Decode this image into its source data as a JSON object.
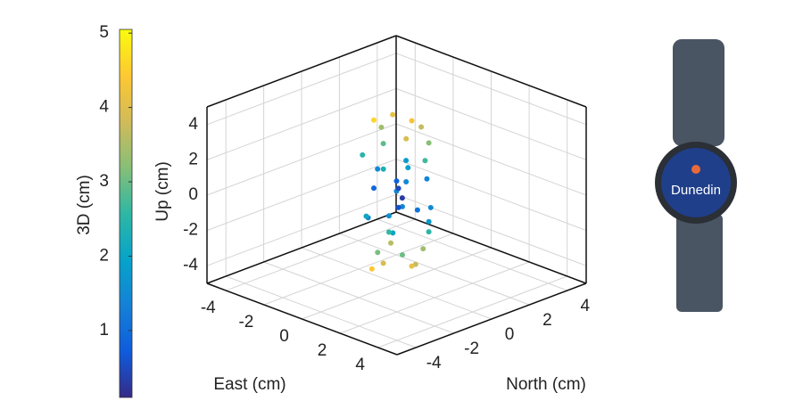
{
  "chart_data": {
    "type": "scatter3d",
    "xlabel": "East (cm)",
    "ylabel": "North (cm)",
    "zlabel": "Up (cm)",
    "xlim": [
      -5,
      5
    ],
    "ylim": [
      -5,
      5
    ],
    "zlim": [
      -5,
      5
    ],
    "xticks": [
      -4,
      -2,
      0,
      2,
      4
    ],
    "yticks": [
      -4,
      -2,
      0,
      2,
      4
    ],
    "zticks": [
      -4,
      -2,
      0,
      2,
      4
    ],
    "grid": true,
    "colorbar": {
      "label": "3D (cm)",
      "clim": [
        0.1,
        5.05
      ],
      "ticks": [
        1,
        2,
        3,
        4,
        5
      ]
    },
    "colormap": [
      "#352a87",
      "#0f5cdd",
      "#1481d6",
      "#06a4ca",
      "#2eb7a4",
      "#87bf77",
      "#d1bb59",
      "#fec832",
      "#f9fb0e"
    ],
    "x": [
      0.5,
      -0.8,
      1.0,
      -0.3,
      0.2,
      -1.2,
      0.9,
      -0.5,
      1.3,
      -1.0,
      0.3,
      -0.2,
      0.8,
      -1.1,
      0.4,
      -0.6,
      1.2,
      0.1,
      -0.9,
      0.6,
      -0.4,
      1.1,
      -1.3,
      0.2,
      0.7,
      -0.7,
      1.0,
      -0.2,
      0.5,
      -1.0,
      0.9,
      -0.4,
      0.3,
      -0.8,
      0.0,
      0.3,
      -0.3,
      0.6,
      -0.6,
      1.4
    ],
    "y": [
      0.3,
      0.6,
      -0.5,
      -0.9,
      1.1,
      0.4,
      0.8,
      -0.2,
      0.2,
      -0.8,
      -1.0,
      0.7,
      -0.3,
      0.1,
      1.2,
      -0.6,
      -0.9,
      0.2,
      0.9,
      0.5,
      -1.1,
      0.6,
      -0.3,
      -0.4,
      1.0,
      0.3,
      -0.7,
      -0.8,
      0.9,
      0.7,
      0.1,
      -0.3,
      0.5,
      -0.5,
      0.0,
      -0.2,
      0.4,
      0.0,
      0.2,
      0.4
    ],
    "z": [
      4.3,
      4.0,
      3.8,
      4.5,
      3.5,
      3.2,
      3.0,
      2.8,
      2.4,
      2.2,
      2.0,
      1.6,
      1.2,
      1.0,
      0.6,
      0.4,
      0.2,
      -0.2,
      -0.5,
      -0.8,
      -1.0,
      -1.3,
      -1.6,
      -1.9,
      -2.2,
      -2.5,
      -2.7,
      -3.0,
      -3.2,
      -3.4,
      -3.6,
      -3.9,
      -4.1,
      -4.3,
      0.8,
      -0.5,
      0.1,
      1.8,
      -1.5,
      -0.3
    ],
    "c": [
      4.3,
      4.1,
      3.9,
      4.6,
      3.7,
      3.4,
      3.2,
      2.9,
      2.7,
      2.5,
      2.3,
      1.8,
      1.5,
      1.5,
      1.4,
      0.9,
      1.5,
      0.3,
      1.4,
      1.1,
      1.5,
      1.8,
      2.1,
      2.0,
      2.5,
      2.6,
      3.0,
      3.1,
      3.4,
      3.6,
      3.7,
      3.9,
      4.1,
      4.4,
      0.8,
      0.6,
      0.5,
      1.9,
      1.6,
      1.5
    ]
  },
  "watch": {
    "label": "Dunedin"
  }
}
